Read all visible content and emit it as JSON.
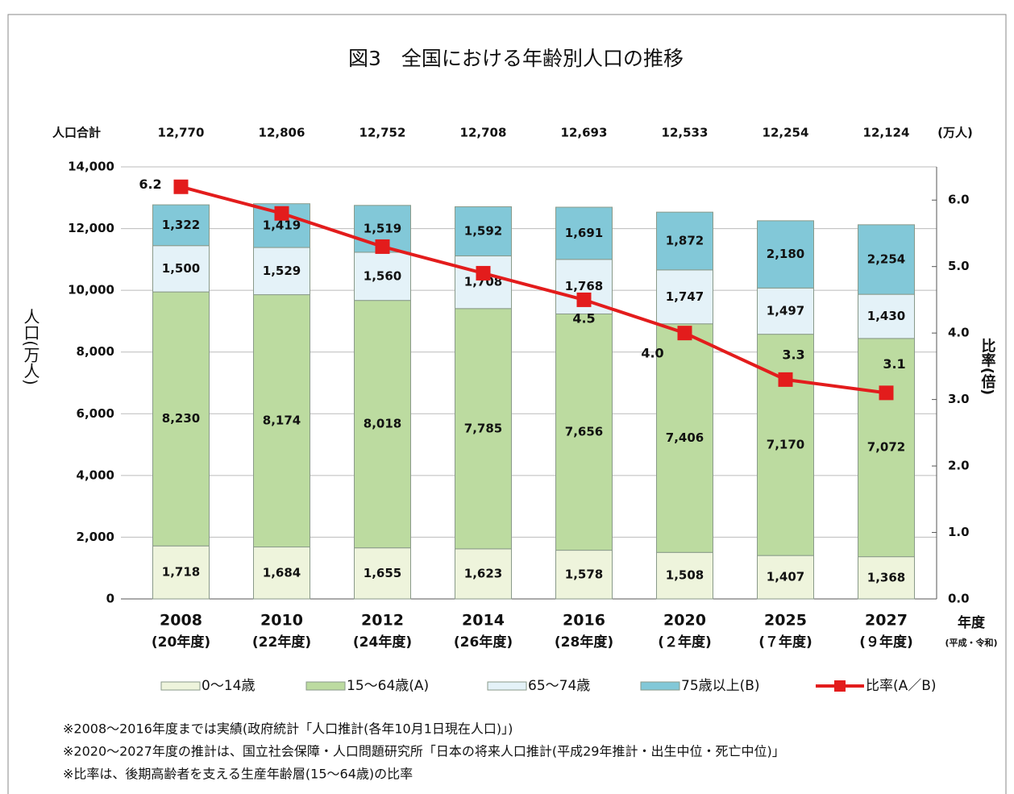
{
  "chart_data": {
    "type": "stacked_bar_line",
    "title": "図3　全国における年齢別人口の推移",
    "total_label": "人口合計",
    "totals": [
      12770,
      12806,
      12752,
      12708,
      12693,
      12533,
      12254,
      12124
    ],
    "totals_labels": [
      "12,770",
      "12,806",
      "12,752",
      "12,708",
      "12,693",
      "12,533",
      "12,254",
      "12,124"
    ],
    "totals_label_overrides": {
      "1": "#e8121b"
    },
    "totals_unit": "(万人)",
    "categories": [
      "2008",
      "2010",
      "2012",
      "2014",
      "2016",
      "2020",
      "2025",
      "2027"
    ],
    "category_sublabels": [
      "(20年度)",
      "(22年度)",
      "(24年度)",
      "(26年度)",
      "(28年度)",
      "(２年度)",
      "(７年度)",
      "(９年度)"
    ],
    "xlabel": "年度",
    "xlabel_sub": "(平成・令和)",
    "ylabel": "人口(万人)",
    "y2label": "比率(倍)",
    "ylim": [
      0,
      14000
    ],
    "yticks": [
      0,
      {
        "value": 2000,
        "label": "2,000"
      },
      {
        "value": 4000,
        "label": "4,000"
      },
      {
        "value": 6000,
        "label": "6,000"
      },
      {
        "value": 8000,
        "label": "8,000"
      },
      {
        "value": 10000,
        "label": "10,000"
      },
      {
        "value": 12000,
        "label": "12,000"
      },
      {
        "value": 14000,
        "label": "14,000"
      }
    ],
    "y2lim": [
      0,
      6.5
    ],
    "y2ticks": [
      {
        "value": 0,
        "label": "0.0"
      },
      {
        "value": 1,
        "label": "1.0"
      },
      {
        "value": 2,
        "label": "2.0"
      },
      {
        "value": 3,
        "label": "3.0"
      },
      {
        "value": 4,
        "label": "4.0"
      },
      {
        "value": 5,
        "label": "5.0"
      },
      {
        "value": 6,
        "label": "6.0"
      }
    ],
    "grid": true,
    "series": [
      {
        "name": "0～14歳",
        "color": "#eef4dc",
        "values": [
          1718,
          1684,
          1655,
          1623,
          1578,
          1508,
          1407,
          1368
        ],
        "value_labels": [
          "1,718",
          "1,684",
          "1,655",
          "1,623",
          "1,578",
          "1,508",
          "1,407",
          "1,368"
        ]
      },
      {
        "name": "15～64歳(A)",
        "color": "#bcdba0",
        "values": [
          8230,
          8174,
          8018,
          7785,
          7656,
          7406,
          7170,
          7072
        ],
        "value_labels": [
          "8,230",
          "8,174",
          "8,018",
          "7,785",
          "7,656",
          "7,406",
          "7,170",
          "7,072"
        ],
        "label_overrides": {
          "4": "#e8121b"
        }
      },
      {
        "name": "65～74歳",
        "color": "#e4f2f8",
        "values": [
          1500,
          1529,
          1560,
          1708,
          1768,
          1747,
          1497,
          1430
        ],
        "value_labels": [
          "1,500",
          "1,529",
          "1,560",
          "1,708",
          "1,768",
          "1,747",
          "1,497",
          "1,430"
        ]
      },
      {
        "name": "75歳以上(B)",
        "color": "#82c8d8",
        "values": [
          1322,
          1419,
          1519,
          1592,
          1691,
          1872,
          2180,
          2254
        ],
        "value_labels": [
          "1,322",
          "1,419",
          "1,519",
          "1,592",
          "1,691",
          "1,872",
          "2,180",
          "2,254"
        ],
        "label_overrides": {
          "4": "#e8121b"
        }
      },
      {
        "name": "比率(A／B)",
        "color": "#e31c1c",
        "type": "line",
        "axis": "y2",
        "values": [
          6.2,
          5.8,
          5.3,
          4.9,
          4.5,
          4.0,
          3.3,
          3.1
        ],
        "value_labels": [
          "6.2",
          null,
          null,
          null,
          "4.5",
          "4.0",
          "3.3",
          "3.1"
        ],
        "label_overrides": {
          "0": "#e8121b",
          "4": "#e8121b",
          "6": "#e8121b"
        }
      }
    ],
    "notes": [
      "※2008～2016年度までは実績(政府統計「人口推計(各年10月1日現在人口)」)",
      "※2020～2027年度の推計は、国立社会保障・人口問題研究所「日本の将来人口推計(平成29年推計・出生中位・死亡中位)」",
      "※比率は、後期高齢者を支える生産年齢層(15～64歳)の比率"
    ]
  }
}
